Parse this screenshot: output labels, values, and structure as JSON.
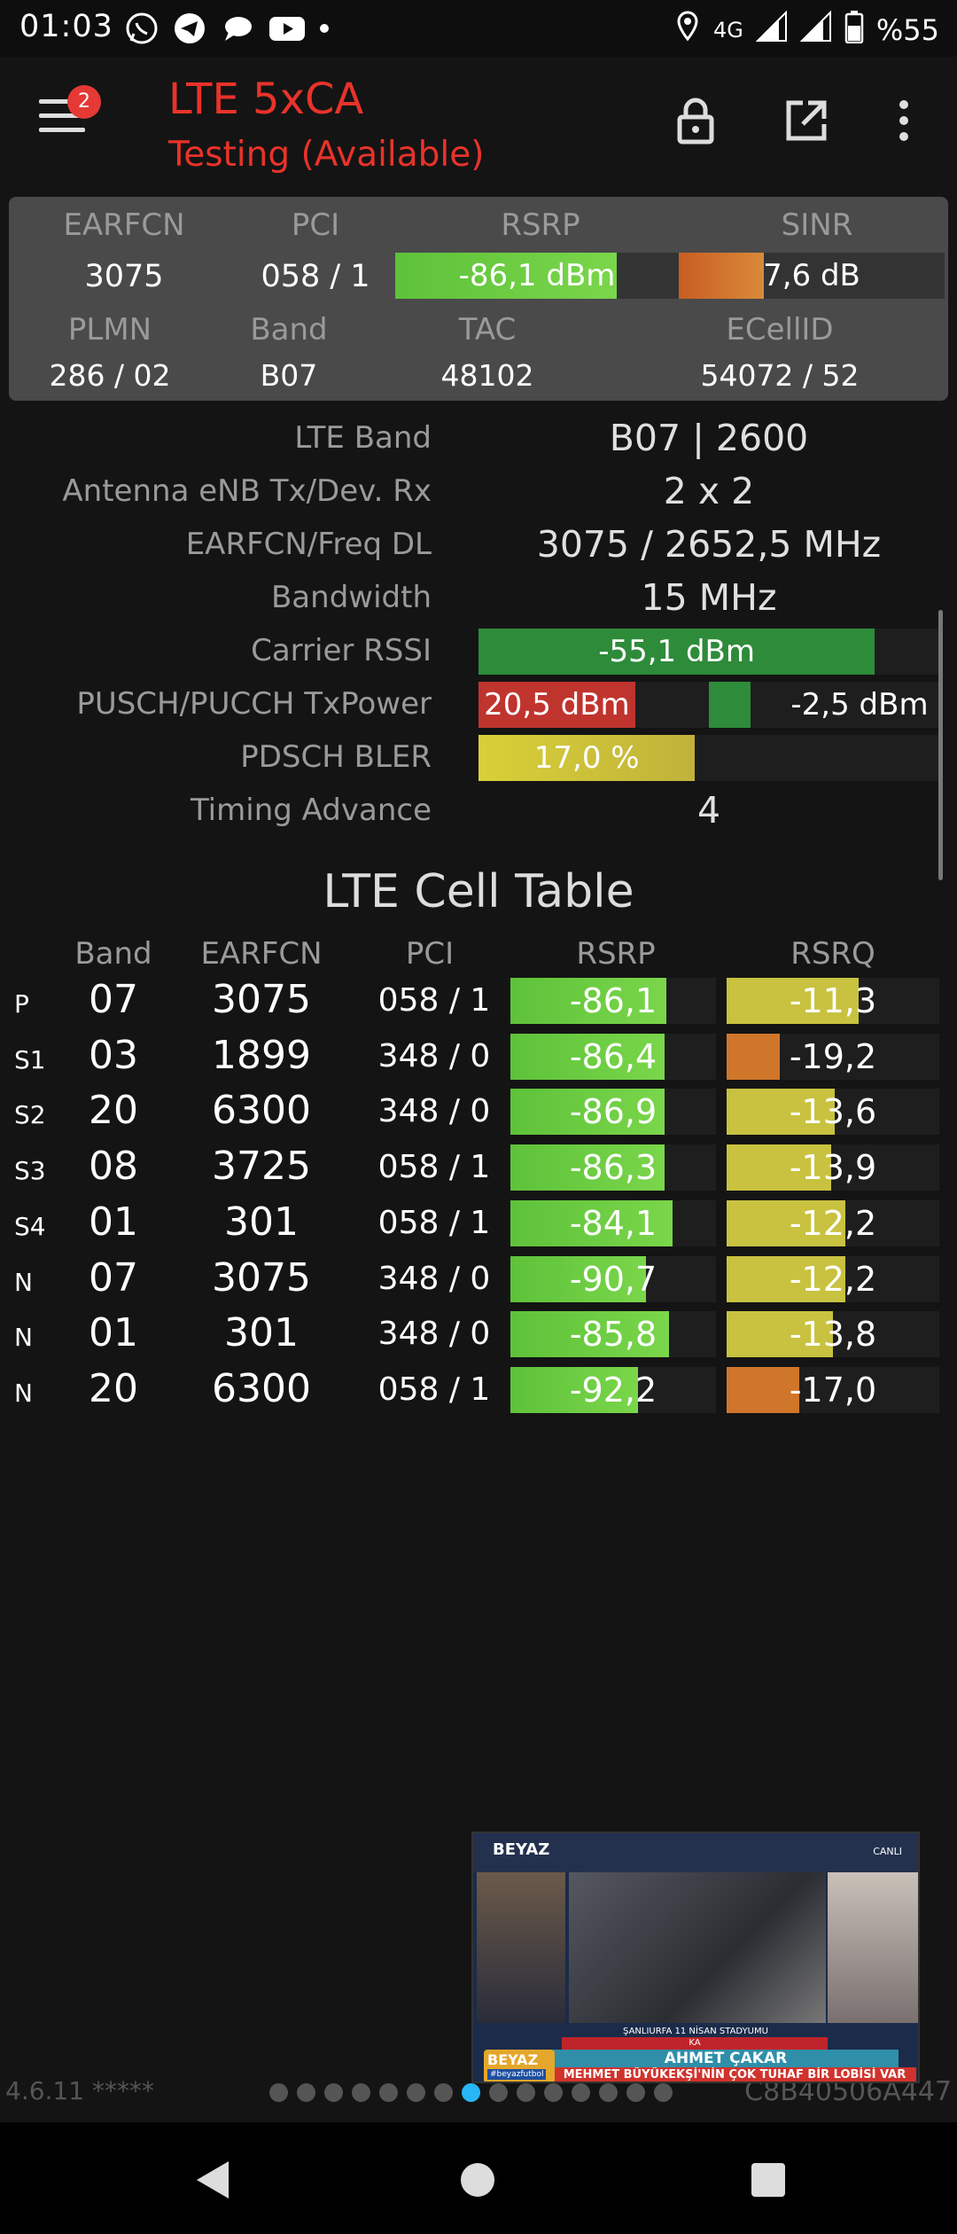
{
  "status_bar": {
    "time": "01:03",
    "network": "4G",
    "battery": "%55",
    "icons": [
      "whatsapp-icon",
      "telegram-icon",
      "chat-icon",
      "youtube-icon",
      "dot-icon",
      "location-icon",
      "signal-icon",
      "signal-icon",
      "battery-icon"
    ]
  },
  "app_bar": {
    "title": "LTE 5xCA",
    "subtitle": "Testing (Available)",
    "menu_badge": "2"
  },
  "summary": {
    "labels": {
      "earfcn": "EARFCN",
      "pci": "PCI",
      "rsrp": "RSRP",
      "sinr": "SINR",
      "plmn": "PLMN",
      "band": "Band",
      "tac": "TAC",
      "ecellid": "ECellID"
    },
    "earfcn": "3075",
    "pci": "058 / 1",
    "rsrp": "-86,1 dBm",
    "rsrp_level": 0.78,
    "sinr": "7,6 dB",
    "sinr_level": 0.32,
    "plmn": "286 / 02",
    "band": "B07",
    "tac": "48102",
    "ecellid": "54072 / 52"
  },
  "info": {
    "lte_band_label": "LTE Band",
    "lte_band": "B07 | 2600",
    "antenna_label": "Antenna eNB Tx/Dev. Rx",
    "antenna": "2 x 2",
    "earfcn_freq_label": "EARFCN/Freq DL",
    "earfcn_freq": "3075 / 2652,5 MHz",
    "bandwidth_label": "Bandwidth",
    "bandwidth": "15 MHz",
    "rssi_label": "Carrier RSSI",
    "rssi": "-55,1 dBm",
    "rssi_level": 0.86,
    "txpower_label": "PUSCH/PUCCH TxPower",
    "pusch": "20,5 dBm",
    "pusch_level": 0.68,
    "pucch": "-2,5 dBm",
    "pucch_level": 0.18,
    "bler_label": "PDSCH BLER",
    "bler": "17,0 %",
    "bler_level": 0.47,
    "ta_label": "Timing Advance",
    "ta": "4"
  },
  "cell_table": {
    "title": "LTE Cell Table",
    "headers": {
      "band": "Band",
      "earfcn": "EARFCN",
      "pci": "PCI",
      "rsrp": "RSRP",
      "rsrq": "RSRQ"
    },
    "rows": [
      {
        "type": "P",
        "band": "07",
        "earfcn": "3075",
        "pci": "058 / 1",
        "rsrp": "-86,1",
        "rsrp_level": 0.76,
        "rsrq": "-11,3",
        "rsrq_level": 0.62,
        "rsrq_color": "#c8c240"
      },
      {
        "type": "S1",
        "band": "03",
        "earfcn": "1899",
        "pci": "348 / 0",
        "rsrp": "-86,4",
        "rsrp_level": 0.75,
        "rsrq": "-19,2",
        "rsrq_level": 0.25,
        "rsrq_color": "#d0762a"
      },
      {
        "type": "S2",
        "band": "20",
        "earfcn": "6300",
        "pci": "348 / 0",
        "rsrp": "-86,9",
        "rsrp_level": 0.75,
        "rsrq": "-13,6",
        "rsrq_level": 0.51,
        "rsrq_color": "#c8c240"
      },
      {
        "type": "S3",
        "band": "08",
        "earfcn": "3725",
        "pci": "058 / 1",
        "rsrp": "-86,3",
        "rsrp_level": 0.75,
        "rsrq": "-13,9",
        "rsrq_level": 0.49,
        "rsrq_color": "#c8c240"
      },
      {
        "type": "S4",
        "band": "01",
        "earfcn": "301",
        "pci": "058 / 1",
        "rsrp": "-84,1",
        "rsrp_level": 0.79,
        "rsrq": "-12,2",
        "rsrq_level": 0.56,
        "rsrq_color": "#c8c240"
      },
      {
        "type": "N",
        "band": "07",
        "earfcn": "3075",
        "pci": "348 / 0",
        "rsrp": "-90,7",
        "rsrp_level": 0.66,
        "rsrq": "-12,2",
        "rsrq_level": 0.56,
        "rsrq_color": "#c8c240"
      },
      {
        "type": "N",
        "band": "01",
        "earfcn": "301",
        "pci": "348 / 0",
        "rsrp": "-85,8",
        "rsrp_level": 0.77,
        "rsrq": "-13,8",
        "rsrq_level": 0.5,
        "rsrq_color": "#c8c240"
      },
      {
        "type": "N",
        "band": "20",
        "earfcn": "6300",
        "pci": "058 / 1",
        "rsrp": "-92,2",
        "rsrp_level": 0.62,
        "rsrq": "-17,0",
        "rsrq_level": 0.34,
        "rsrq_color": "#d0762a"
      }
    ]
  },
  "footer": {
    "version": "4.6.11 *****",
    "cell_code": "C8B40506A447",
    "page_count": 15,
    "active_page": 7
  },
  "ad": {
    "logo": "BEYAZ",
    "live": "CANLI",
    "caption": "ŞANLIURFA 11 NİSAN STADYUMU",
    "strip": "KA",
    "name": "AHMET ÇAKAR",
    "headline": "MEHMET BÜYÜKEKŞİ'NİN ÇOK TUHAF BİR LOBİSİ VAR",
    "brand": "BEYAZ",
    "brand_tag": "#beyazfutbol"
  },
  "colors": {
    "green": "#5ec23a",
    "green_dark": "#2e8b3a",
    "orange": "#d0762a",
    "red": "#c0342e",
    "yellow": "#c8c240",
    "accent_red": "#e8332a"
  }
}
